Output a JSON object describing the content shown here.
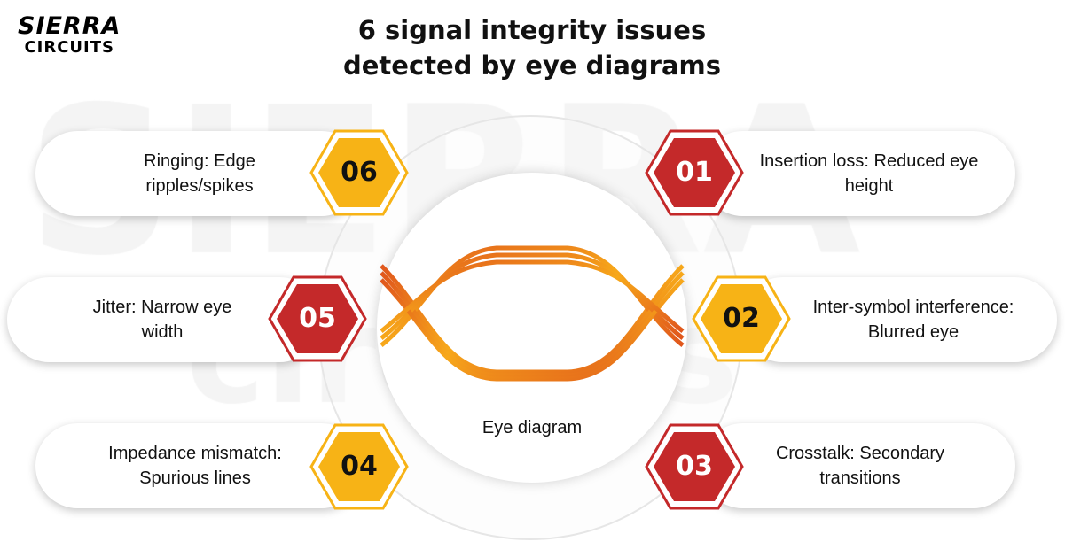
{
  "logo": {
    "line1": "SIERRA",
    "line2": "CIRCUITS"
  },
  "title": {
    "line1": "6 signal integrity issues",
    "line2": "detected by eye diagrams"
  },
  "watermark": {
    "line1": "SIERRA",
    "line2": "circuits"
  },
  "center": {
    "label": "Eye diagram"
  },
  "colors": {
    "red": "#c4292a",
    "yellow": "#f7b316",
    "eye_orange": "#e8741c"
  },
  "issues": [
    {
      "number": "01",
      "text": "Insertion loss: Reduced eye height",
      "color": "red"
    },
    {
      "number": "02",
      "text": "Inter-symbol interference: Blurred eye",
      "color": "yellow"
    },
    {
      "number": "03",
      "text": "Crosstalk: Secondary transitions",
      "color": "red"
    },
    {
      "number": "04",
      "text": "Impedance mismatch: Spurious lines",
      "color": "yellow"
    },
    {
      "number": "05",
      "text": "Jitter: Narrow eye width",
      "color": "red"
    },
    {
      "number": "06",
      "text": "Ringing: Edge ripples/spikes",
      "color": "yellow"
    }
  ]
}
